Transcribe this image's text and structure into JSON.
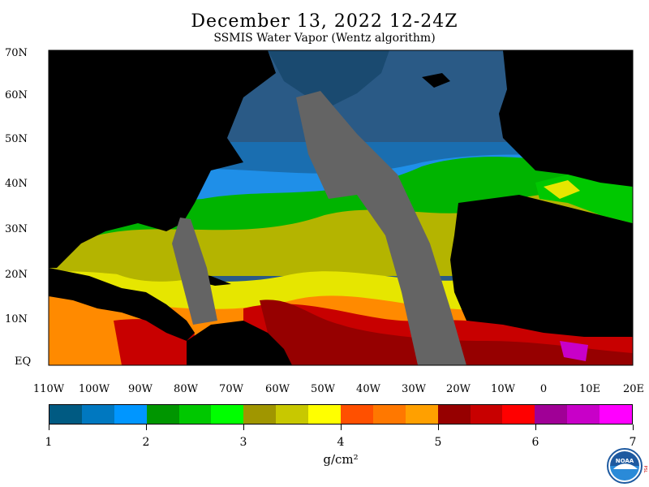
{
  "title": "December 13, 2022 12-24Z",
  "subtitle": "SSMIS Water Vapor (Wentz algorithm)",
  "lat_labels": [
    "70N",
    "60N",
    "50N",
    "40N",
    "30N",
    "20N",
    "10N",
    "EQ"
  ],
  "lon_labels": [
    "110W",
    "100W",
    "90W",
    "80W",
    "70W",
    "60W",
    "50W",
    "40W",
    "30W",
    "20W",
    "10W",
    "0",
    "10E",
    "20E"
  ],
  "colorbar": {
    "colors": [
      "#005a82",
      "#0078c0",
      "#0096ff",
      "#009600",
      "#00c800",
      "#00ff00",
      "#a09600",
      "#c8c800",
      "#ffff00",
      "#ff5000",
      "#ff7800",
      "#ffa000",
      "#960000",
      "#c80000",
      "#ff0000",
      "#a00096",
      "#c800c8",
      "#ff00ff"
    ],
    "tick_labels": [
      "1",
      "2",
      "3",
      "4",
      "5",
      "6",
      "7"
    ],
    "units": "g/cm²"
  },
  "colors": {
    "land": "#000000",
    "no_data": "#646464",
    "swath_gap": "#7a7a7a"
  },
  "logo": {
    "name": "noaa-logo",
    "text": "NOAA",
    "side_text": "PSL"
  }
}
